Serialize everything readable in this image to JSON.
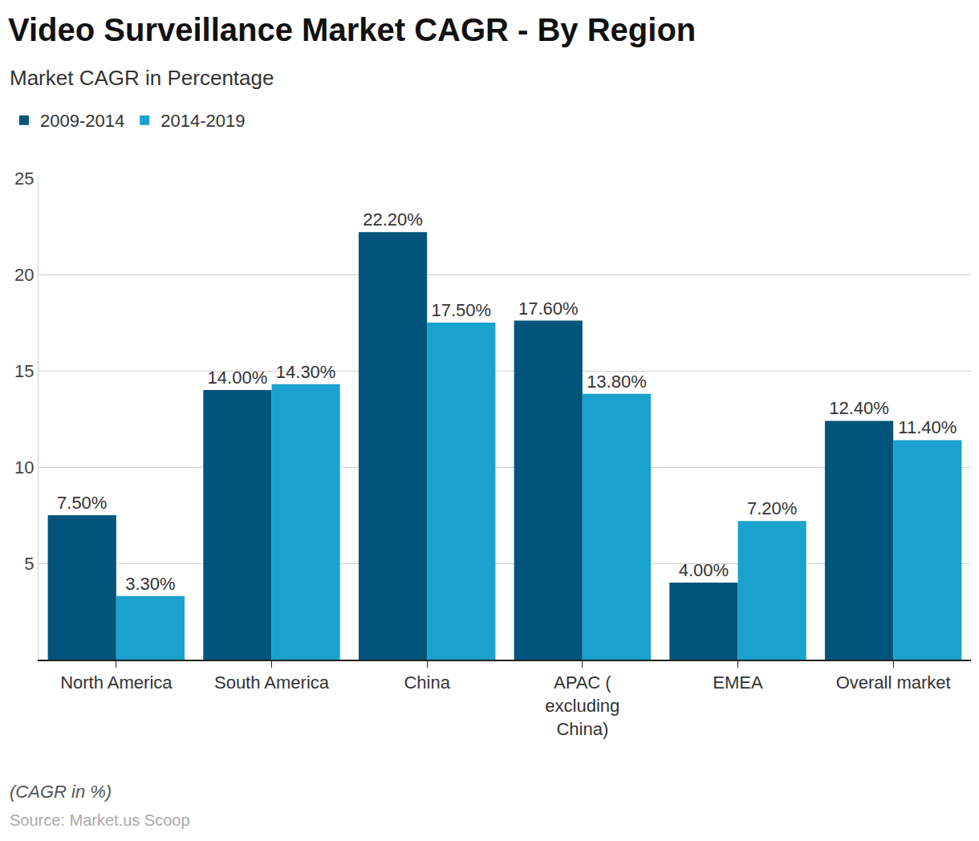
{
  "chart_data": {
    "type": "bar",
    "title": "Video Surveillance Market CAGR - By Region",
    "subtitle": "Market CAGR in Percentage",
    "categories": [
      "North America",
      "South America",
      "China",
      "APAC ( excluding China)",
      "EMEA",
      "Overall market"
    ],
    "series": [
      {
        "name": "2009-2014",
        "color": "#02557a",
        "values": [
          7.5,
          14.0,
          22.2,
          17.6,
          4.0,
          12.4
        ],
        "value_labels": [
          "7.50%",
          "14.00%",
          "22.20%",
          "17.60%",
          "4.00%",
          "12.40%"
        ]
      },
      {
        "name": "2014-2019",
        "color": "#1ba1ce",
        "values": [
          3.3,
          14.3,
          17.5,
          13.8,
          7.2,
          11.4
        ],
        "value_labels": [
          "3.30%",
          "14.30%",
          "17.50%",
          "13.80%",
          "7.20%",
          "11.40%"
        ]
      }
    ],
    "ylim": [
      0,
      25
    ],
    "yticks": [
      5,
      10,
      15,
      20,
      25
    ],
    "grid": true,
    "legend": "top-left",
    "data_labels": true,
    "annotations": [
      "(CAGR in %)",
      "Source: Market.us Scoop"
    ]
  }
}
